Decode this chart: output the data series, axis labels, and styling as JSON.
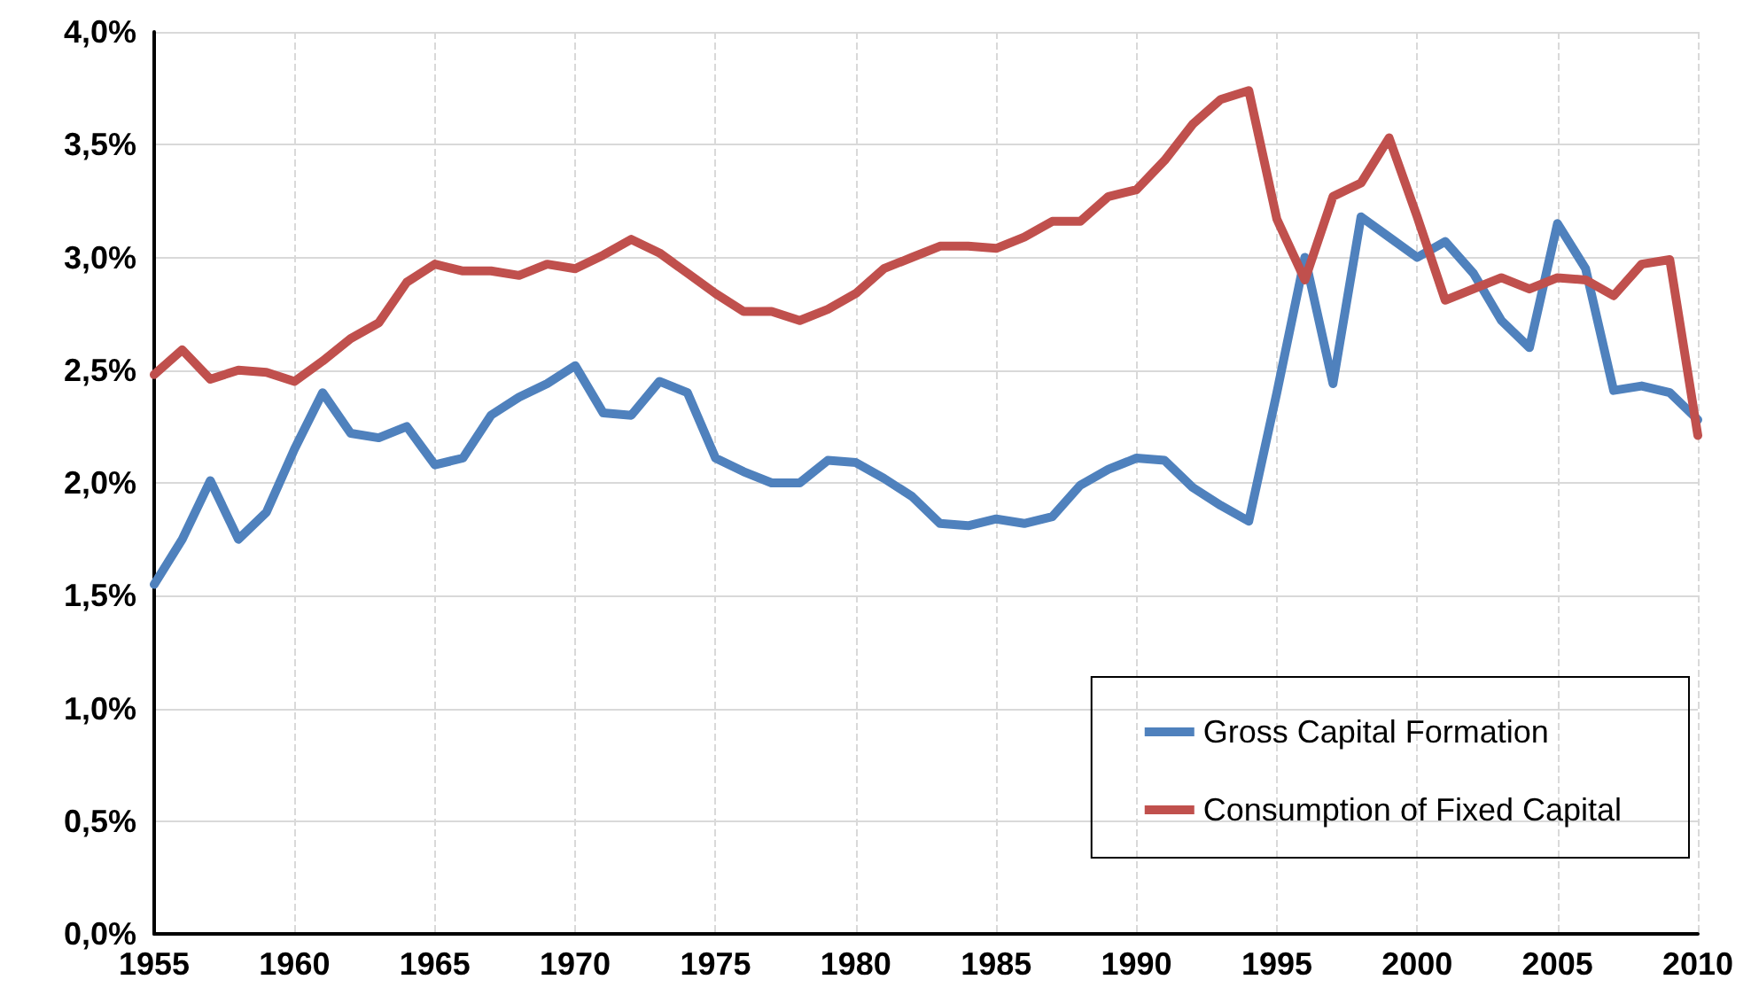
{
  "chart_data": {
    "type": "line",
    "x": [
      1955,
      1956,
      1957,
      1958,
      1959,
      1960,
      1961,
      1962,
      1963,
      1964,
      1965,
      1966,
      1967,
      1968,
      1969,
      1970,
      1971,
      1972,
      1973,
      1974,
      1975,
      1976,
      1977,
      1978,
      1979,
      1980,
      1981,
      1982,
      1983,
      1984,
      1985,
      1986,
      1987,
      1988,
      1989,
      1990,
      1991,
      1992,
      1993,
      1994,
      1995,
      1996,
      1997,
      1998,
      1999,
      2000,
      2001,
      2002,
      2003,
      2004,
      2005,
      2006,
      2007,
      2008,
      2009,
      2010
    ],
    "series": [
      {
        "name": "Gross Capital Formation",
        "color": "#4f81bd",
        "values": [
          1.55,
          1.75,
          2.01,
          1.75,
          1.87,
          2.15,
          2.4,
          2.22,
          2.2,
          2.25,
          2.08,
          2.11,
          2.3,
          2.38,
          2.44,
          2.52,
          2.31,
          2.3,
          2.45,
          2.4,
          2.11,
          2.05,
          2.0,
          2.0,
          2.1,
          2.09,
          2.02,
          1.94,
          1.82,
          1.81,
          1.84,
          1.82,
          1.85,
          1.99,
          2.06,
          2.11,
          2.1,
          1.98,
          1.9,
          1.83,
          2.4,
          3.0,
          2.44,
          3.18,
          3.09,
          3.0,
          3.07,
          2.93,
          2.72,
          2.6,
          3.15,
          2.95,
          2.41,
          2.43,
          2.4,
          2.28
        ]
      },
      {
        "name": "Consumption of Fixed Capital",
        "color": "#c0504d",
        "values": [
          2.48,
          2.59,
          2.46,
          2.5,
          2.49,
          2.45,
          2.54,
          2.64,
          2.71,
          2.89,
          2.97,
          2.94,
          2.94,
          2.92,
          2.97,
          2.95,
          3.01,
          3.08,
          3.02,
          2.93,
          2.84,
          2.76,
          2.76,
          2.72,
          2.77,
          2.84,
          2.95,
          3.0,
          3.05,
          3.05,
          3.04,
          3.09,
          3.16,
          3.16,
          3.27,
          3.3,
          3.43,
          3.59,
          3.7,
          3.74,
          3.17,
          2.9,
          3.27,
          3.33,
          3.53,
          3.18,
          2.81,
          2.86,
          2.91,
          2.86,
          2.91,
          2.9,
          2.83,
          2.97,
          2.99,
          2.21
        ]
      }
    ],
    "xlim": [
      1955,
      2010
    ],
    "xticks": [
      1955,
      1960,
      1965,
      1970,
      1975,
      1980,
      1985,
      1990,
      1995,
      2000,
      2005,
      2010
    ],
    "ylim": [
      0,
      4
    ],
    "yticks": [
      {
        "value": 0,
        "label": "0,0%"
      },
      {
        "value": 0.5,
        "label": "0,5%"
      },
      {
        "value": 1,
        "label": "1,0%"
      },
      {
        "value": 1.5,
        "label": "1,5%"
      },
      {
        "value": 2,
        "label": "2,0%"
      },
      {
        "value": 2.5,
        "label": "2,5%"
      },
      {
        "value": 3,
        "label": "3,0%"
      },
      {
        "value": 3.5,
        "label": "3,5%"
      },
      {
        "value": 4,
        "label": "4,0%"
      }
    ],
    "grid": true,
    "legend": "bottom right",
    "marker": "none",
    "line_style": "solid"
  }
}
